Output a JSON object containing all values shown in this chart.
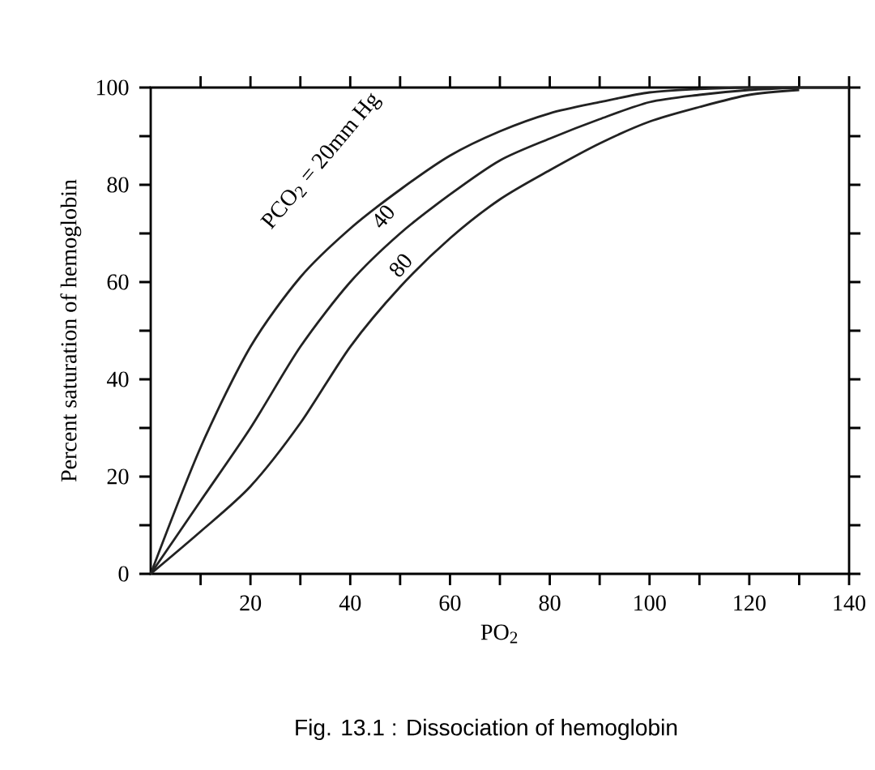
{
  "chart_data": {
    "type": "line",
    "title": "Fig. 13.1 : Dissociation of hemoglobin",
    "xlabel": "PO$_{2}$",
    "ylabel": "Percent saturation of hemoglobin",
    "x": [
      0,
      10,
      20,
      30,
      40,
      50,
      60,
      70,
      80,
      90,
      100,
      110,
      120,
      130,
      140
    ],
    "series": [
      {
        "color": "#222222",
        "values": [
          0,
          26,
          46.7,
          61,
          71,
          79,
          86,
          91,
          94.7,
          97,
          99,
          99.7,
          100,
          100,
          100
        ]
      },
      {
        "color": "#222222",
        "x": [
          0,
          10,
          20,
          30,
          40,
          50,
          60,
          70,
          80,
          90,
          100,
          110,
          120,
          130
        ],
        "values": [
          0,
          15,
          30,
          46.7,
          60,
          70,
          78,
          85,
          89.5,
          93.5,
          97,
          98.5,
          99.5,
          100
        ]
      },
      {
        "color": "#222222",
        "x": [
          0,
          10,
          20,
          30,
          40,
          50,
          60,
          70,
          80,
          90,
          100,
          110,
          120,
          130
        ],
        "values": [
          0,
          8.7,
          18,
          31,
          46.7,
          59,
          69,
          77,
          83,
          88.5,
          93,
          96,
          98.5,
          99.5
        ]
      }
    ],
    "xlim": [
      0,
      140
    ],
    "ylim": [
      0,
      100
    ],
    "xticks": [
      {
        "value": 10,
        "label": null
      },
      20,
      {
        "value": 30,
        "label": null
      },
      40,
      {
        "value": 50,
        "label": null
      },
      60,
      {
        "value": 70,
        "label": null
      },
      80,
      {
        "value": 90,
        "label": null
      },
      100,
      {
        "value": 110,
        "label": null
      },
      120,
      {
        "value": 130,
        "label": null
      },
      140
    ],
    "yticks": [
      0,
      {
        "value": 10,
        "label": null
      },
      20,
      {
        "value": 30,
        "label": null
      },
      40,
      {
        "value": 50,
        "label": null
      },
      60,
      {
        "value": 70,
        "label": null
      },
      80,
      {
        "value": 90,
        "label": null
      },
      100
    ],
    "grid": false,
    "annotations": [
      "PCO$_{2}$ = 20mm Hg",
      "40",
      "80"
    ]
  }
}
